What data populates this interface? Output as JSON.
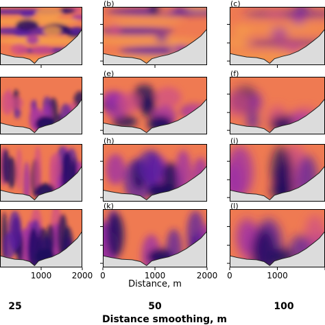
{
  "figure": {
    "columns": [
      "25",
      "50",
      "100"
    ],
    "row_count": 4,
    "panel_labels": [
      [
        "",
        "(b)",
        "(c)"
      ],
      [
        "",
        "(e)",
        "(f)"
      ],
      [
        "",
        "(h)",
        "(i)"
      ],
      [
        "",
        "(k)",
        "(l)"
      ]
    ],
    "x_axis": {
      "label": "Distance, m",
      "range": [
        0,
        2000
      ],
      "tick_labels": [
        "0",
        "1000",
        "2000"
      ]
    },
    "column_caption": "Distance smoothing, m",
    "colormap": [
      "#1a0a5c",
      "#5a1fa0",
      "#9a2fa8",
      "#cf4f86",
      "#ef7a52",
      "#f6a04a"
    ],
    "terrain_color": "#dcdcdc"
  },
  "chart_data": {
    "type": "heatmap",
    "xlabel": "Distance, m",
    "xlim": [
      0,
      2000
    ],
    "x_ticks": [
      0,
      1000,
      2000
    ],
    "columns": [
      "25",
      "50",
      "100"
    ],
    "column_caption": "Distance smoothing, m",
    "panels": [
      "(b)",
      "(c)",
      "(e)",
      "(f)",
      "(h)",
      "(i)",
      "(k)",
      "(l)"
    ]
  }
}
